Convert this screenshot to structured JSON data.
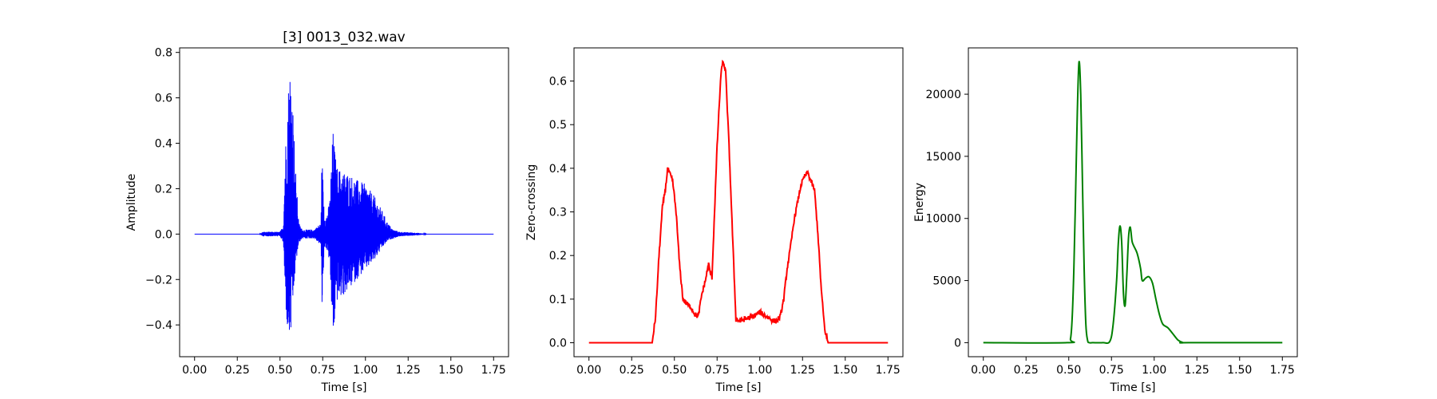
{
  "figure": {
    "background": "#ffffff"
  },
  "chart_data": [
    {
      "type": "line",
      "title": "[3] 0013_032.wav",
      "xlabel": "Time [s]",
      "ylabel": "Amplitude",
      "color": "#0000ff",
      "style": "waveform",
      "xlim": [
        -0.0875,
        1.8375
      ],
      "ylim": [
        -0.54,
        0.82
      ],
      "xticks": [
        0,
        0.25,
        0.5,
        0.75,
        1.0,
        1.25,
        1.5,
        1.75
      ],
      "xtick_labels": [
        "0.00",
        "0.25",
        "0.50",
        "0.75",
        "1.00",
        "1.25",
        "1.50",
        "1.75"
      ],
      "yticks": [
        -0.4,
        -0.2,
        0.0,
        0.2,
        0.4,
        0.6,
        0.8
      ],
      "ytick_labels": [
        "−0.4",
        "−0.2",
        "0.0",
        "0.2",
        "0.4",
        "0.6",
        "0.8"
      ],
      "envelope": {
        "x": [
          0.0,
          0.38,
          0.4,
          0.5,
          0.52,
          0.53,
          0.545,
          0.56,
          0.575,
          0.59,
          0.61,
          0.63,
          0.7,
          0.74,
          0.745,
          0.76,
          0.77,
          0.79,
          0.81,
          0.83,
          0.86,
          0.9,
          0.95,
          1.0,
          1.05,
          1.1,
          1.13,
          1.16,
          1.2,
          1.3,
          1.36,
          1.4,
          1.75
        ],
        "upper": [
          0.0,
          0.0,
          0.01,
          0.01,
          0.04,
          0.35,
          0.62,
          0.76,
          0.6,
          0.3,
          0.05,
          0.02,
          0.02,
          0.05,
          0.36,
          0.1,
          0.08,
          0.14,
          0.46,
          0.3,
          0.28,
          0.27,
          0.24,
          0.22,
          0.17,
          0.1,
          0.05,
          0.02,
          0.01,
          0.006,
          0.0,
          0.0,
          0.0
        ],
        "lower": [
          0.0,
          0.0,
          -0.01,
          -0.01,
          -0.04,
          -0.28,
          -0.45,
          -0.48,
          -0.33,
          -0.15,
          -0.04,
          -0.02,
          -0.02,
          -0.05,
          -0.35,
          -0.06,
          -0.06,
          -0.12,
          -0.48,
          -0.3,
          -0.28,
          -0.25,
          -0.2,
          -0.16,
          -0.12,
          -0.06,
          -0.03,
          -0.02,
          -0.01,
          -0.006,
          0.0,
          0.0,
          0.0
        ]
      }
    },
    {
      "type": "line",
      "title": "",
      "xlabel": "Time [s]",
      "ylabel": "Zero-crossing",
      "color": "#ff0000",
      "style": "noisy",
      "xlim": [
        -0.0875,
        1.8375
      ],
      "ylim": [
        -0.032,
        0.676
      ],
      "xticks": [
        0,
        0.25,
        0.5,
        0.75,
        1.0,
        1.25,
        1.5,
        1.75
      ],
      "xtick_labels": [
        "0.00",
        "0.25",
        "0.50",
        "0.75",
        "1.00",
        "1.25",
        "1.50",
        "1.75"
      ],
      "yticks": [
        0.0,
        0.1,
        0.2,
        0.3,
        0.4,
        0.5,
        0.6
      ],
      "ytick_labels": [
        "0.0",
        "0.1",
        "0.2",
        "0.3",
        "0.4",
        "0.5",
        "0.6"
      ],
      "x": [
        0.0,
        0.37,
        0.39,
        0.41,
        0.43,
        0.45,
        0.46,
        0.47,
        0.49,
        0.51,
        0.53,
        0.55,
        0.57,
        0.6,
        0.62,
        0.64,
        0.66,
        0.68,
        0.7,
        0.71,
        0.72,
        0.73,
        0.75,
        0.77,
        0.78,
        0.79,
        0.8,
        0.82,
        0.84,
        0.86,
        0.88,
        0.92,
        0.96,
        1.0,
        1.04,
        1.08,
        1.1,
        1.12,
        1.14,
        1.16,
        1.18,
        1.2,
        1.22,
        1.24,
        1.26,
        1.28,
        1.3,
        1.32,
        1.34,
        1.36,
        1.38,
        1.4,
        1.75
      ],
      "y": [
        0.0,
        0.0,
        0.06,
        0.2,
        0.31,
        0.36,
        0.4,
        0.39,
        0.37,
        0.3,
        0.18,
        0.1,
        0.09,
        0.08,
        0.065,
        0.06,
        0.11,
        0.14,
        0.18,
        0.16,
        0.15,
        0.25,
        0.45,
        0.6,
        0.64,
        0.64,
        0.62,
        0.45,
        0.25,
        0.055,
        0.05,
        0.055,
        0.06,
        0.07,
        0.06,
        0.05,
        0.05,
        0.06,
        0.1,
        0.17,
        0.22,
        0.28,
        0.32,
        0.36,
        0.38,
        0.39,
        0.37,
        0.35,
        0.25,
        0.12,
        0.03,
        0.0,
        0.0
      ]
    },
    {
      "type": "line",
      "title": "",
      "xlabel": "Time [s]",
      "ylabel": "Energy",
      "color": "#008000",
      "style": "smooth",
      "xlim": [
        -0.0875,
        1.8375
      ],
      "ylim": [
        -1130,
        23730
      ],
      "xticks": [
        0,
        0.25,
        0.5,
        0.75,
        1.0,
        1.25,
        1.5,
        1.75
      ],
      "xtick_labels": [
        "0.00",
        "0.25",
        "0.50",
        "0.75",
        "1.00",
        "1.25",
        "1.50",
        "1.75"
      ],
      "yticks": [
        0,
        5000,
        10000,
        15000,
        20000
      ],
      "ytick_labels": [
        "0",
        "5000",
        "10000",
        "15000",
        "20000"
      ],
      "x": [
        0.0,
        0.49,
        0.51,
        0.52,
        0.53,
        0.54,
        0.55,
        0.56,
        0.57,
        0.58,
        0.59,
        0.6,
        0.61,
        0.62,
        0.64,
        0.7,
        0.74,
        0.76,
        0.78,
        0.79,
        0.8,
        0.81,
        0.82,
        0.83,
        0.84,
        0.85,
        0.86,
        0.87,
        0.88,
        0.9,
        0.92,
        0.93,
        0.95,
        0.97,
        0.99,
        1.01,
        1.03,
        1.05,
        1.08,
        1.11,
        1.14,
        1.17,
        1.2,
        1.75
      ],
      "y": [
        0,
        0,
        300,
        2000,
        6000,
        12000,
        18500,
        22600,
        20000,
        13000,
        6000,
        1500,
        200,
        0,
        0,
        0,
        100,
        1500,
        5000,
        8000,
        9400,
        8000,
        4000,
        3000,
        5500,
        8500,
        9300,
        8200,
        7800,
        7200,
        6000,
        5000,
        5200,
        5300,
        4800,
        3500,
        2300,
        1500,
        1200,
        700,
        200,
        0,
        0,
        0
      ]
    }
  ]
}
